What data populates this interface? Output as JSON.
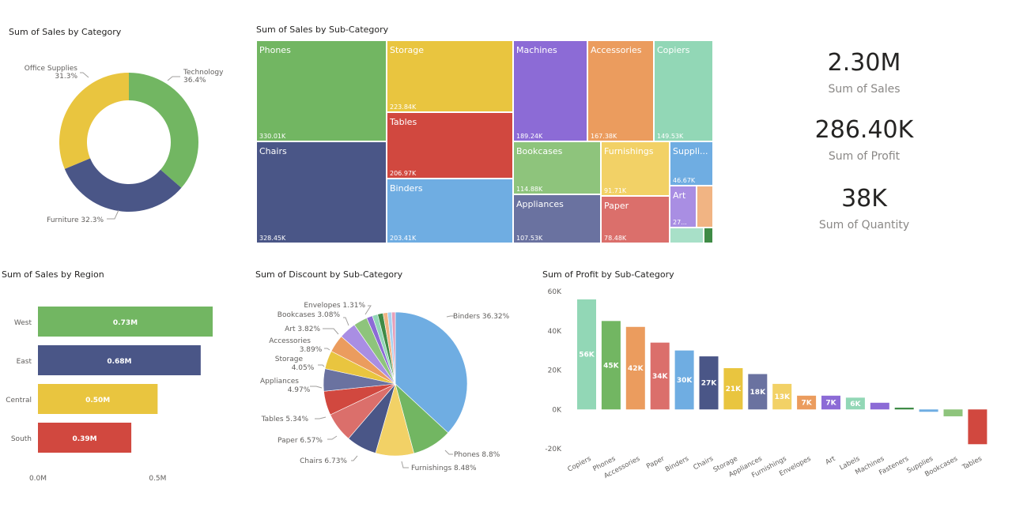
{
  "colors": {
    "green": "#72b662",
    "navy": "#4a5687",
    "yellow": "#e9c53f",
    "red": "#d1483f",
    "blue": "#6fade2",
    "purple": "#8c6bd6",
    "orange": "#eb9c5e",
    "mint": "#92d7b6",
    "slate": "#6a72a0",
    "salmon": "#db6f6b",
    "lightgreen": "#8ec47c",
    "lightyellow": "#f2d166",
    "pink": "#e6a0ba",
    "darkgreen": "#3f8b46",
    "lightblue": "#a8d1f0"
  },
  "kpis": [
    {
      "value": "2.30M",
      "label": "Sum of Sales"
    },
    {
      "value": "286.40K",
      "label": "Sum of Profit"
    },
    {
      "value": "38K",
      "label": "Sum of Quantity"
    }
  ],
  "chart_data": [
    {
      "id": "donut",
      "type": "pie",
      "title": "Sum of Sales by Category",
      "categories": [
        "Technology",
        "Furniture",
        "Office Supplies"
      ],
      "values": [
        36.4,
        32.3,
        31.3
      ],
      "labels": [
        {
          "line1": "Technology",
          "line2": "36.4%"
        },
        {
          "line1": "Furniture 32.3%",
          "line2": ""
        },
        {
          "line1": "Office Supplies",
          "line2": "31.3%"
        }
      ],
      "colors": [
        "#72b662",
        "#4a5687",
        "#e9c53f"
      ]
    },
    {
      "id": "treemap",
      "type": "treemap",
      "title": "Sum of Sales by Sub-Category",
      "items": [
        {
          "name": "Phones",
          "value": "330.01K",
          "color": "#72b662"
        },
        {
          "name": "Chairs",
          "value": "328.45K",
          "color": "#4a5687"
        },
        {
          "name": "Storage",
          "value": "223.84K",
          "color": "#e9c53f"
        },
        {
          "name": "Tables",
          "value": "206.97K",
          "color": "#d1483f"
        },
        {
          "name": "Binders",
          "value": "203.41K",
          "color": "#6fade2"
        },
        {
          "name": "Machines",
          "value": "189.24K",
          "color": "#8c6bd6"
        },
        {
          "name": "Accessories",
          "value": "167.38K",
          "color": "#eb9c5e"
        },
        {
          "name": "Copiers",
          "value": "149.53K",
          "color": "#92d7b6"
        },
        {
          "name": "Bookcases",
          "value": "114.88K",
          "color": "#8ec47c"
        },
        {
          "name": "Appliances",
          "value": "107.53K",
          "color": "#6a72a0"
        },
        {
          "name": "Furnishings",
          "value": "91.71K",
          "color": "#f2d166"
        },
        {
          "name": "Paper",
          "value": "78.48K",
          "color": "#db6f6b"
        },
        {
          "name": "Suppli...",
          "value": "46.67K",
          "color": "#6fade2"
        },
        {
          "name": "Art",
          "value": "27...",
          "color": "#a98ee3"
        },
        {
          "name": "",
          "value": "",
          "color": "#f1b483"
        },
        {
          "name": "",
          "value": "",
          "color": "#a8e0c8"
        },
        {
          "name": "",
          "value": "",
          "color": "#3f8b46"
        }
      ]
    },
    {
      "id": "region",
      "type": "bar",
      "title": "Sum of Sales by Region",
      "categories": [
        "West",
        "East",
        "Central",
        "South"
      ],
      "values": [
        0.73,
        0.68,
        0.5,
        0.39
      ],
      "value_labels": [
        "0.73M",
        "0.68M",
        "0.50M",
        "0.39M"
      ],
      "colors": [
        "#72b662",
        "#4a5687",
        "#e9c53f",
        "#d1483f"
      ],
      "xticks": [
        "0.0M",
        "0.5M"
      ],
      "xlim": [
        0,
        0.73
      ],
      "orientation": "horizontal"
    },
    {
      "id": "discount",
      "type": "pie",
      "title": "Sum of Discount by Sub-Category",
      "categories": [
        "Binders",
        "Phones",
        "Furnishings",
        "Chairs",
        "Paper",
        "Tables",
        "Appliances",
        "Storage",
        "Accessories",
        "Art",
        "Bookcases",
        "Envelopes",
        "Labels",
        "Fasteners",
        "Supplies",
        "Copiers",
        "Machines"
      ],
      "values": [
        36.32,
        8.8,
        8.48,
        6.73,
        6.57,
        5.34,
        4.97,
        4.05,
        3.89,
        3.82,
        3.08,
        1.31,
        1.2,
        1.2,
        1.0,
        0.9,
        0.8
      ],
      "colors": [
        "#6fade2",
        "#72b662",
        "#f2d166",
        "#4a5687",
        "#db6f6b",
        "#d1483f",
        "#6a72a0",
        "#e9c53f",
        "#eb9c5e",
        "#a98ee3",
        "#8ec47c",
        "#8c6bd6",
        "#92d7b6",
        "#3f8b46",
        "#f1b483",
        "#a8d1f0",
        "#e6a0ba"
      ],
      "labels": [
        {
          "text": "Binders 36.32%",
          "line2": ""
        },
        {
          "text": "Phones 8.8%",
          "line2": ""
        },
        {
          "text": "Furnishings 8.48%",
          "line2": ""
        },
        {
          "text": "Chairs 6.73%",
          "line2": ""
        },
        {
          "text": "Paper 6.57%",
          "line2": ""
        },
        {
          "text": "Tables 5.34%",
          "line2": ""
        },
        {
          "text": "Appliances",
          "line2": "4.97%"
        },
        {
          "text": "Storage",
          "line2": "4.05%"
        },
        {
          "text": "Accessories",
          "line2": "3.89%"
        },
        {
          "text": "Art 3.82%",
          "line2": ""
        },
        {
          "text": "Bookcases 3.08%",
          "line2": ""
        },
        {
          "text": "Envelopes 1.31%",
          "line2": ""
        }
      ]
    },
    {
      "id": "profit",
      "type": "bar",
      "title": "Sum of Profit by Sub-Category",
      "categories": [
        "Copiers",
        "Phones",
        "Accessories",
        "Paper",
        "Binders",
        "Chairs",
        "Storage",
        "Appliances",
        "Furnishings",
        "Envelopes",
        "Art",
        "Labels",
        "Machines",
        "Fasteners",
        "Supplies",
        "Bookcases",
        "Tables"
      ],
      "values": [
        56,
        45,
        42,
        34,
        30,
        27,
        21,
        18,
        13,
        7,
        7,
        6,
        3.4,
        0.9,
        -1.2,
        -3.5,
        -17.7
      ],
      "value_labels": [
        "56K",
        "45K",
        "42K",
        "34K",
        "30K",
        "27K",
        "21K",
        "18K",
        "13K",
        "7K",
        "7K",
        "6K",
        "",
        "",
        "",
        "",
        ""
      ],
      "colors": [
        "#92d7b6",
        "#72b662",
        "#eb9c5e",
        "#db6f6b",
        "#6fade2",
        "#4a5687",
        "#e9c53f",
        "#6a72a0",
        "#f2d166",
        "#eb9c5e",
        "#8c6bd6",
        "#92d7b6",
        "#8c6bd6",
        "#3f8b46",
        "#6fade2",
        "#8ec47c",
        "#d1483f"
      ],
      "yticks": [
        "60K",
        "40K",
        "20K",
        "0K",
        "-20K"
      ],
      "ytick_values": [
        60,
        40,
        20,
        0,
        -20
      ],
      "ylim": [
        -20,
        60
      ]
    }
  ]
}
